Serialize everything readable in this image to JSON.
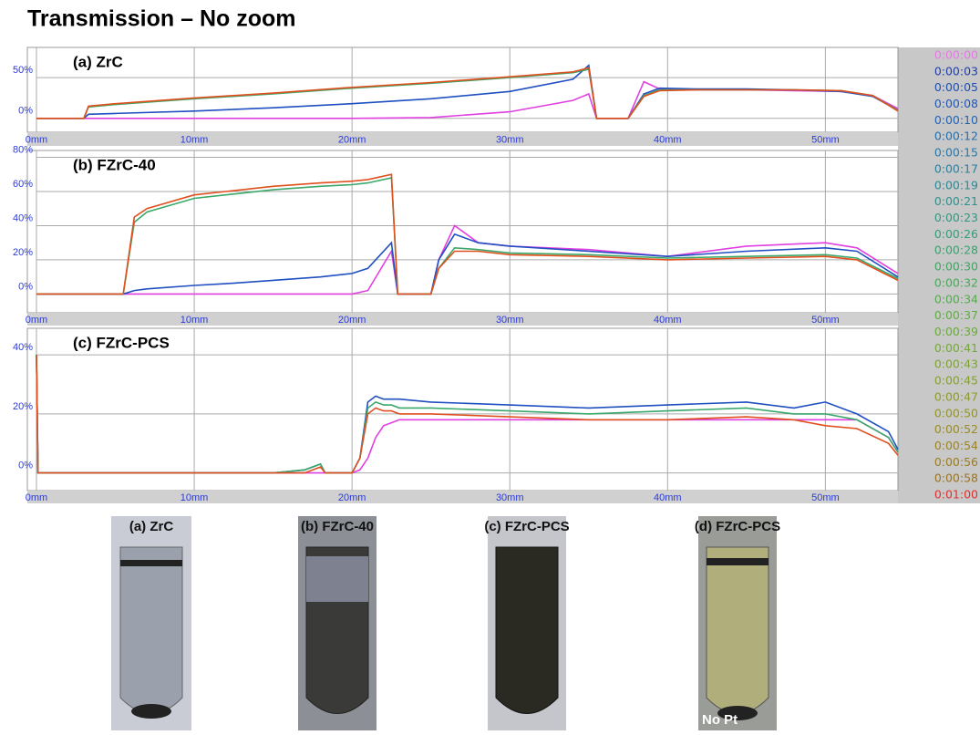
{
  "header": {
    "title": "Transmission – No zoom"
  },
  "chart_data": [
    {
      "type": "line",
      "title": "(a) ZrC",
      "x": [
        0,
        3,
        3.3,
        5,
        10,
        15,
        20,
        25,
        30,
        34,
        35,
        35.5,
        37.5,
        38.5,
        39.5,
        42,
        45,
        48,
        51,
        53,
        54.6
      ],
      "series": [
        {
          "color": "#e040e0",
          "values": [
            0,
            0,
            0,
            0,
            0,
            0,
            0,
            1,
            8,
            22,
            30,
            0,
            0,
            45,
            36,
            35,
            35,
            34,
            33,
            28,
            12
          ]
        },
        {
          "color": "#1f4fc0",
          "values": [
            0,
            0,
            5,
            6,
            9,
            13,
            18,
            24,
            33,
            48,
            65,
            0,
            0,
            30,
            37,
            36,
            36,
            35,
            33,
            27,
            10
          ]
        },
        {
          "color": "#3aa86a",
          "values": [
            0,
            0,
            14,
            17,
            24,
            30,
            37,
            43,
            50,
            56,
            60,
            0,
            0,
            28,
            35,
            35,
            35,
            35,
            34,
            28,
            10
          ]
        },
        {
          "color": "#e0501e",
          "values": [
            0,
            0,
            15,
            18,
            25,
            31,
            38,
            44,
            51,
            57,
            62,
            0,
            0,
            27,
            34,
            35,
            35,
            35,
            34,
            28,
            9
          ]
        }
      ],
      "xlim": [
        0,
        54.6
      ],
      "ylim": [
        -17,
        87
      ],
      "xticks": [
        {
          "value": 0,
          "label": "0mm"
        },
        {
          "value": 10,
          "label": "10mm"
        },
        {
          "value": 20,
          "label": "20mm"
        },
        {
          "value": 30,
          "label": "30mm"
        },
        {
          "value": 40,
          "label": "40mm"
        },
        {
          "value": 50,
          "label": "50mm"
        }
      ],
      "yticks": [
        {
          "value": 0,
          "label": "0%"
        },
        {
          "value": 50,
          "label": "50%"
        }
      ],
      "grid": true
    },
    {
      "type": "line",
      "title": "(b) FZrC-40",
      "x": [
        0,
        5.5,
        6.2,
        7,
        10,
        12,
        15,
        18,
        20,
        21,
        22.5,
        22.9,
        23.3,
        25,
        25.5,
        26.5,
        28,
        30,
        35,
        40,
        45,
        50,
        52,
        54.6
      ],
      "series": [
        {
          "color": "#e040e0",
          "values": [
            0,
            0,
            0,
            0,
            0,
            0,
            0,
            0,
            0,
            2,
            25,
            0,
            0,
            0,
            20,
            40,
            30,
            28,
            26,
            22,
            28,
            30,
            27,
            12
          ]
        },
        {
          "color": "#1f4fc0",
          "values": [
            0,
            0,
            2,
            3,
            5,
            6,
            8,
            10,
            12,
            15,
            30,
            0,
            0,
            0,
            20,
            35,
            30,
            28,
            25,
            22,
            25,
            27,
            25,
            10
          ]
        },
        {
          "color": "#3aa86a",
          "values": [
            0,
            0,
            42,
            48,
            56,
            58,
            61,
            63,
            64,
            65,
            68,
            0,
            0,
            0,
            15,
            27,
            26,
            24,
            23,
            21,
            22,
            23,
            21,
            9
          ]
        },
        {
          "color": "#e0501e",
          "values": [
            0,
            0,
            45,
            50,
            58,
            60,
            63,
            65,
            66,
            67,
            70,
            0,
            0,
            0,
            15,
            25,
            25,
            23,
            22,
            20,
            21,
            22,
            20,
            8
          ]
        }
      ],
      "xlim": [
        0,
        54.6
      ],
      "ylim": [
        -11,
        84
      ],
      "xticks": [
        {
          "value": 0,
          "label": "0mm"
        },
        {
          "value": 10,
          "label": "10mm"
        },
        {
          "value": 20,
          "label": "20mm"
        },
        {
          "value": 30,
          "label": "30mm"
        },
        {
          "value": 40,
          "label": "40mm"
        },
        {
          "value": 50,
          "label": "50mm"
        }
      ],
      "yticks": [
        {
          "value": 0,
          "label": "0%"
        },
        {
          "value": 20,
          "label": "20%"
        },
        {
          "value": 40,
          "label": "40%"
        },
        {
          "value": 60,
          "label": "60%"
        },
        {
          "value": 80,
          "label": "80%"
        }
      ],
      "grid": true
    },
    {
      "type": "line",
      "title": "(c) FZrC-PCS",
      "x": [
        0,
        0.1,
        0.3,
        15,
        17,
        18,
        18.3,
        20,
        20.5,
        21,
        21.5,
        22,
        22.5,
        23,
        25,
        30,
        35,
        40,
        45,
        48,
        50,
        52,
        54,
        54.6
      ],
      "series": [
        {
          "color": "#e040e0",
          "values": [
            40,
            0,
            0,
            0,
            0,
            0,
            0,
            0,
            1,
            5,
            12,
            16,
            17,
            18,
            18,
            18,
            18,
            18,
            18,
            18,
            18,
            18,
            12,
            7
          ]
        },
        {
          "color": "#1f4fc0",
          "values": [
            40,
            0,
            0,
            0,
            1,
            3,
            0,
            0,
            5,
            24,
            26,
            25,
            25,
            25,
            24,
            23,
            22,
            23,
            24,
            22,
            24,
            20,
            14,
            8
          ]
        },
        {
          "color": "#3aa86a",
          "values": [
            40,
            0,
            0,
            0,
            1,
            3,
            0,
            0,
            5,
            22,
            24,
            23,
            23,
            22,
            22,
            21,
            20,
            21,
            22,
            20,
            20,
            18,
            12,
            7
          ]
        },
        {
          "color": "#e0501e",
          "values": [
            40,
            0,
            0,
            0,
            0,
            2,
            0,
            0,
            5,
            20,
            22,
            21,
            21,
            20,
            20,
            19,
            18,
            18,
            19,
            18,
            16,
            15,
            10,
            6
          ]
        }
      ],
      "xlim": [
        0,
        54.6
      ],
      "ylim": [
        -6,
        49
      ],
      "xticks": [
        {
          "value": 0,
          "label": "0mm"
        },
        {
          "value": 10,
          "label": "10mm"
        },
        {
          "value": 20,
          "label": "20mm"
        },
        {
          "value": 30,
          "label": "30mm"
        },
        {
          "value": 40,
          "label": "40mm"
        },
        {
          "value": 50,
          "label": "50mm"
        }
      ],
      "yticks": [
        {
          "value": 0,
          "label": "0%"
        },
        {
          "value": 20,
          "label": "20%"
        },
        {
          "value": 40,
          "label": "40%"
        }
      ],
      "grid": true
    }
  ],
  "legend": [
    {
      "label": "0:00:00",
      "color": "#e878e8"
    },
    {
      "label": "0:00:03",
      "color": "#1f3fa8"
    },
    {
      "label": "0:00:05",
      "color": "#1f4fb0"
    },
    {
      "label": "0:00:08",
      "color": "#2158b4"
    },
    {
      "label": "0:00:10",
      "color": "#2363b4"
    },
    {
      "label": "0:00:12",
      "color": "#256eae"
    },
    {
      "label": "0:00:15",
      "color": "#2878a6"
    },
    {
      "label": "0:00:17",
      "color": "#2a809e"
    },
    {
      "label": "0:00:19",
      "color": "#2d8896"
    },
    {
      "label": "0:00:21",
      "color": "#30908c"
    },
    {
      "label": "0:00:23",
      "color": "#339682"
    },
    {
      "label": "0:00:26",
      "color": "#379c78"
    },
    {
      "label": "0:00:28",
      "color": "#3ba06c"
    },
    {
      "label": "0:00:30",
      "color": "#40a462"
    },
    {
      "label": "0:00:32",
      "color": "#4aa858"
    },
    {
      "label": "0:00:34",
      "color": "#55aa4e"
    },
    {
      "label": "0:00:37",
      "color": "#60ac44"
    },
    {
      "label": "0:00:39",
      "color": "#6aaa3c"
    },
    {
      "label": "0:00:41",
      "color": "#74a838"
    },
    {
      "label": "0:00:43",
      "color": "#7ea434"
    },
    {
      "label": "0:00:45",
      "color": "#86a030"
    },
    {
      "label": "0:00:47",
      "color": "#8e9a2c"
    },
    {
      "label": "0:00:50",
      "color": "#949428"
    },
    {
      "label": "0:00:52",
      "color": "#988c26"
    },
    {
      "label": "0:00:54",
      "color": "#9a8424"
    },
    {
      "label": "0:00:56",
      "color": "#9a7c22"
    },
    {
      "label": "0:00:58",
      "color": "#9a7420"
    },
    {
      "label": "0:01:00",
      "color": "#e03030"
    }
  ],
  "photos": [
    {
      "label": "(a) ZrC"
    },
    {
      "label": "(b) FZrC-40"
    },
    {
      "label": "(c) FZrC-PCS"
    },
    {
      "label": "(d) FZrC-PCS",
      "note": "No Pt"
    }
  ]
}
